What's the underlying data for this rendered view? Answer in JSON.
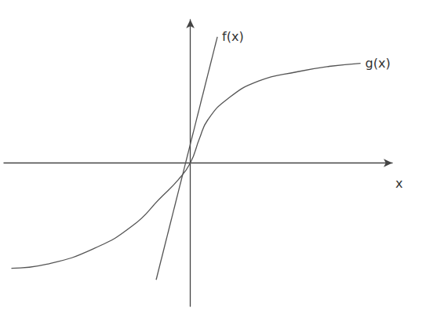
{
  "chart_data": {
    "type": "line",
    "xlabel": "x",
    "xlim": [
      -6,
      6.5
    ],
    "ylim": [
      -4.6,
      4.6
    ],
    "grid": false,
    "tick_labels": false,
    "series": [
      {
        "name": "f(x)",
        "color": "#555555",
        "x": [
          -1.1,
          0.87
        ],
        "values": [
          -3.75,
          4.05
        ]
      },
      {
        "name": "g(x)",
        "color": "#555555",
        "x": [
          -5.76,
          -4.62,
          -3.11,
          -1.84,
          -0.96,
          -0.4,
          0,
          0.3,
          0.56,
          1.19,
          2.2,
          3.46,
          4.47,
          5.48
        ],
        "values": [
          -3.38,
          -3.25,
          -2.75,
          -2.0,
          -1.12,
          -0.55,
          0,
          0.8,
          1.38,
          2.05,
          2.63,
          2.93,
          3.1,
          3.2
        ]
      }
    ]
  }
}
